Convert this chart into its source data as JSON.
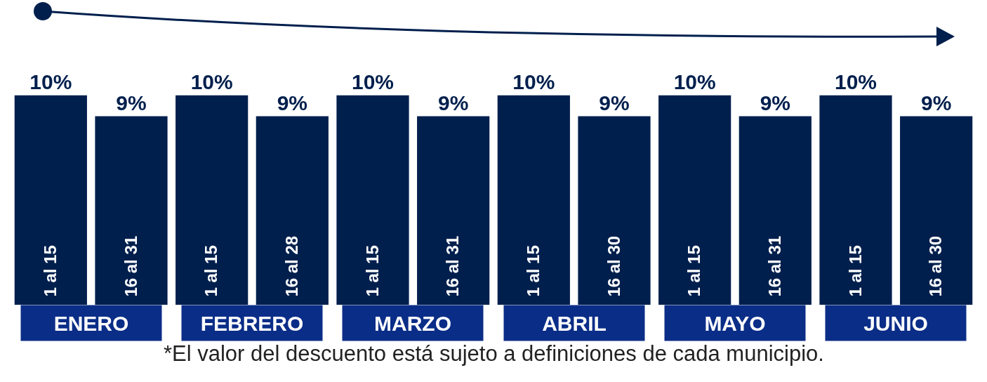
{
  "chart_data": {
    "type": "bar",
    "categories": [
      "1 al 15",
      "16 al 31",
      "1 al 15",
      "16 al 28",
      "1 al 15",
      "16 al 31",
      "1 al 15",
      "16 al 30",
      "1 al 15",
      "16 al 31",
      "1 al 15",
      "16 al 30"
    ],
    "values": [
      10,
      9,
      10,
      9,
      10,
      9,
      10,
      9,
      10,
      9,
      10,
      9
    ],
    "value_labels": [
      "10%",
      "9%",
      "10%",
      "9%",
      "10%",
      "9%",
      "10%",
      "9%",
      "10%",
      "9%",
      "10%",
      "9%"
    ],
    "color": "#001f4d",
    "annotations": [
      "ENERO",
      "FEBRERO",
      "MARZO",
      "ABRIL",
      "MAYO",
      "JUNIO",
      "*El valor del descuento está sujeto a definiciones de cada municipio."
    ],
    "grid": false,
    "legend": false
  }
}
